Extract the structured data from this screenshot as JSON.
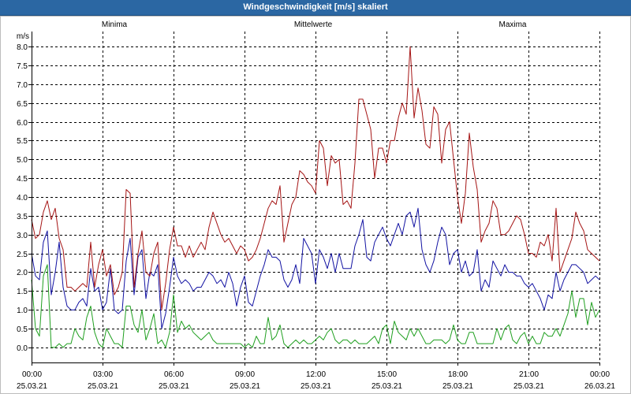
{
  "window": {
    "title_bar_color": "#2b67a3"
  },
  "chart_data": {
    "type": "line",
    "title": "Windgeschwindigkeit [m/s] skaliert",
    "xlabel": "",
    "ylabel": "m/s",
    "ylim": [
      -0.4,
      8.4
    ],
    "grid": true,
    "legend_position": "top",
    "yticks": [
      "0.0",
      "0.5",
      "1.0",
      "1.5",
      "2.0",
      "2.5",
      "3.0",
      "3.5",
      "4.0",
      "4.5",
      "5.0",
      "5.5",
      "6.0",
      "6.5",
      "7.0",
      "7.5",
      "8.0"
    ],
    "xticks": [
      {
        "time": "00:00",
        "date": "25.03.21"
      },
      {
        "time": "03:00",
        "date": "25.03.21"
      },
      {
        "time": "06:00",
        "date": "25.03.21"
      },
      {
        "time": "09:00",
        "date": "25.03.21"
      },
      {
        "time": "12:00",
        "date": "25.03.21"
      },
      {
        "time": "15:00",
        "date": "25.03.21"
      },
      {
        "time": "18:00",
        "date": "25.03.21"
      },
      {
        "time": "21:00",
        "date": "25.03.21"
      },
      {
        "time": "00:00",
        "date": "26.03.21"
      }
    ],
    "x": [
      "25.03.21 00:00",
      "25.03.21 00:10",
      "25.03.21 00:20",
      "25.03.21 00:30",
      "25.03.21 00:40",
      "25.03.21 00:50",
      "25.03.21 01:00",
      "25.03.21 01:10",
      "25.03.21 01:20",
      "25.03.21 01:30",
      "25.03.21 01:40",
      "25.03.21 01:50",
      "25.03.21 02:00",
      "25.03.21 02:10",
      "25.03.21 02:20",
      "25.03.21 02:30",
      "25.03.21 02:40",
      "25.03.21 02:50",
      "25.03.21 03:00",
      "25.03.21 03:10",
      "25.03.21 03:20",
      "25.03.21 03:30",
      "25.03.21 03:40",
      "25.03.21 03:50",
      "25.03.21 04:00",
      "25.03.21 04:10",
      "25.03.21 04:20",
      "25.03.21 04:30",
      "25.03.21 04:40",
      "25.03.21 04:50",
      "25.03.21 05:00",
      "25.03.21 05:10",
      "25.03.21 05:20",
      "25.03.21 05:30",
      "25.03.21 05:40",
      "25.03.21 05:50",
      "25.03.21 06:00",
      "25.03.21 06:10",
      "25.03.21 06:20",
      "25.03.21 06:30",
      "25.03.21 06:40",
      "25.03.21 06:50",
      "25.03.21 07:00",
      "25.03.21 07:10",
      "25.03.21 07:20",
      "25.03.21 07:30",
      "25.03.21 07:40",
      "25.03.21 07:50",
      "25.03.21 08:00",
      "25.03.21 08:10",
      "25.03.21 08:20",
      "25.03.21 08:30",
      "25.03.21 08:40",
      "25.03.21 08:50",
      "25.03.21 09:00",
      "25.03.21 09:10",
      "25.03.21 09:20",
      "25.03.21 09:30",
      "25.03.21 09:40",
      "25.03.21 09:50",
      "25.03.21 10:00",
      "25.03.21 10:10",
      "25.03.21 10:20",
      "25.03.21 10:30",
      "25.03.21 10:40",
      "25.03.21 10:50",
      "25.03.21 11:00",
      "25.03.21 11:10",
      "25.03.21 11:20",
      "25.03.21 11:30",
      "25.03.21 11:40",
      "25.03.21 11:50",
      "25.03.21 12:00",
      "25.03.21 12:10",
      "25.03.21 12:20",
      "25.03.21 12:30",
      "25.03.21 12:40",
      "25.03.21 12:50",
      "25.03.21 13:00",
      "25.03.21 13:10",
      "25.03.21 13:20",
      "25.03.21 13:30",
      "25.03.21 13:40",
      "25.03.21 13:50",
      "25.03.21 14:00",
      "25.03.21 14:10",
      "25.03.21 14:20",
      "25.03.21 14:30",
      "25.03.21 14:40",
      "25.03.21 14:50",
      "25.03.21 15:00",
      "25.03.21 15:10",
      "25.03.21 15:20",
      "25.03.21 15:30",
      "25.03.21 15:40",
      "25.03.21 15:50",
      "25.03.21 16:00",
      "25.03.21 16:10",
      "25.03.21 16:20",
      "25.03.21 16:30",
      "25.03.21 16:40",
      "25.03.21 16:50",
      "25.03.21 17:00",
      "25.03.21 17:10",
      "25.03.21 17:20",
      "25.03.21 17:30",
      "25.03.21 17:40",
      "25.03.21 17:50",
      "25.03.21 18:00",
      "25.03.21 18:10",
      "25.03.21 18:20",
      "25.03.21 18:30",
      "25.03.21 18:40",
      "25.03.21 18:50",
      "25.03.21 19:00",
      "25.03.21 19:10",
      "25.03.21 19:20",
      "25.03.21 19:30",
      "25.03.21 19:40",
      "25.03.21 19:50",
      "25.03.21 20:00",
      "25.03.21 20:10",
      "25.03.21 20:20",
      "25.03.21 20:30",
      "25.03.21 20:40",
      "25.03.21 20:50",
      "25.03.21 21:00",
      "25.03.21 21:10",
      "25.03.21 21:20",
      "25.03.21 21:30",
      "25.03.21 21:40",
      "25.03.21 21:50",
      "25.03.21 22:00",
      "25.03.21 22:10",
      "25.03.21 22:20",
      "25.03.21 22:30",
      "25.03.21 22:40",
      "25.03.21 22:50",
      "25.03.21 23:00",
      "25.03.21 23:10",
      "25.03.21 23:20",
      "25.03.21 23:30",
      "25.03.21 23:40",
      "25.03.21 23:50",
      "26.03.21 00:00"
    ],
    "series": [
      {
        "name": "Minima",
        "color": "#1f9f1f",
        "values": [
          1.8,
          0.5,
          0.3,
          1.9,
          2.2,
          0.0,
          0.0,
          0.1,
          0.0,
          0.1,
          0.1,
          0.5,
          0.3,
          0.2,
          0.8,
          1.1,
          0.4,
          0.1,
          0.0,
          0.5,
          0.3,
          0.1,
          0.1,
          0.0,
          1.1,
          1.1,
          0.6,
          0.4,
          1.0,
          0.2,
          0.5,
          0.9,
          0.1,
          0.2,
          0.0,
          0.4,
          1.4,
          0.4,
          0.7,
          0.5,
          0.6,
          0.4,
          0.3,
          0.2,
          0.3,
          0.4,
          0.2,
          0.1,
          0.1,
          0.1,
          0.1,
          0.1,
          0.1,
          0.1,
          0.0,
          0.1,
          0.0,
          0.3,
          0.1,
          0.1,
          0.8,
          0.2,
          0.3,
          0.6,
          0.1,
          0.0,
          0.1,
          0.2,
          0.1,
          0.2,
          0.1,
          0.1,
          0.2,
          0.3,
          0.2,
          0.4,
          0.5,
          0.2,
          0.1,
          0.2,
          0.2,
          0.1,
          0.2,
          0.1,
          0.1,
          0.1,
          0.2,
          0.3,
          0.1,
          0.5,
          0.6,
          0.1,
          0.7,
          0.4,
          0.3,
          0.2,
          0.5,
          0.3,
          0.5,
          0.3,
          0.1,
          0.1,
          0.2,
          0.2,
          0.2,
          0.1,
          0.2,
          0.6,
          0.2,
          0.1,
          0.1,
          0.4,
          0.4,
          0.1,
          0.1,
          0.1,
          0.1,
          0.1,
          0.5,
          0.2,
          0.5,
          0.6,
          0.2,
          0.1,
          0.3,
          0.4,
          0.1,
          0.3,
          0.1,
          0.1,
          0.4,
          0.3,
          0.3,
          0.5,
          0.3,
          0.6,
          0.9,
          1.5,
          0.8,
          1.3,
          1.3,
          0.6,
          1.2,
          0.8,
          1.0
        ]
      },
      {
        "name": "Mittelwerte",
        "color": "#1212a2",
        "values": [
          2.5,
          1.9,
          1.8,
          2.8,
          3.1,
          1.4,
          2.0,
          2.8,
          1.6,
          1.1,
          1.0,
          1.0,
          1.2,
          1.3,
          1.1,
          2.1,
          1.5,
          1.6,
          1.0,
          1.2,
          2.1,
          1.0,
          0.9,
          1.0,
          2.3,
          2.9,
          1.4,
          2.4,
          2.6,
          1.3,
          2.0,
          1.9,
          2.2,
          0.5,
          0.9,
          1.6,
          2.4,
          1.9,
          1.7,
          1.8,
          1.7,
          1.5,
          1.6,
          1.6,
          1.8,
          2.0,
          1.9,
          1.7,
          1.8,
          1.6,
          2.0,
          1.7,
          1.1,
          1.6,
          1.9,
          1.2,
          1.1,
          1.5,
          1.9,
          2.2,
          2.6,
          2.4,
          2.4,
          2.3,
          1.8,
          1.6,
          1.8,
          2.2,
          1.7,
          2.9,
          2.7,
          2.5,
          1.7,
          2.6,
          2.4,
          2.1,
          2.5,
          2.0,
          2.5,
          2.1,
          2.1,
          2.1,
          2.7,
          3.0,
          3.4,
          2.4,
          2.3,
          2.8,
          3.0,
          3.2,
          2.9,
          2.7,
          3.0,
          3.3,
          3.0,
          3.5,
          3.6,
          3.2,
          3.7,
          2.6,
          2.2,
          2.0,
          2.3,
          2.8,
          3.2,
          3.0,
          2.2,
          2.5,
          2.6,
          2.0,
          2.3,
          1.9,
          2.0,
          2.6,
          1.5,
          1.8,
          1.6,
          2.3,
          2.1,
          1.9,
          2.2,
          2.0,
          2.0,
          1.9,
          1.9,
          1.7,
          1.6,
          1.7,
          1.5,
          1.3,
          1.0,
          1.4,
          1.3,
          2.0,
          1.5,
          1.8,
          2.0,
          2.2,
          2.2,
          2.1,
          2.0,
          1.7,
          1.8,
          1.9,
          1.8
        ]
      },
      {
        "name": "Maxima",
        "color": "#a51414",
        "values": [
          3.4,
          2.9,
          3.0,
          3.6,
          3.9,
          3.4,
          3.7,
          2.9,
          2.6,
          1.6,
          1.6,
          1.5,
          1.6,
          1.7,
          1.6,
          2.8,
          1.6,
          2.2,
          2.6,
          1.9,
          2.2,
          1.4,
          1.6,
          2.0,
          4.2,
          4.1,
          1.6,
          2.5,
          3.1,
          2.0,
          1.9,
          2.5,
          2.8,
          1.0,
          1.7,
          2.6,
          3.2,
          2.7,
          2.7,
          2.4,
          2.7,
          2.4,
          2.6,
          2.8,
          2.6,
          3.2,
          3.6,
          3.3,
          3.0,
          2.8,
          2.9,
          2.7,
          2.5,
          2.7,
          2.6,
          2.3,
          2.4,
          2.6,
          2.9,
          3.3,
          3.7,
          3.9,
          3.8,
          4.3,
          2.8,
          3.3,
          3.8,
          4.0,
          4.7,
          4.6,
          4.4,
          4.3,
          4.1,
          5.5,
          5.3,
          4.3,
          5.1,
          4.9,
          5.0,
          3.8,
          3.9,
          3.7,
          4.9,
          6.6,
          6.6,
          6.2,
          5.8,
          4.5,
          5.3,
          5.3,
          4.9,
          5.5,
          5.5,
          6.1,
          6.5,
          6.2,
          8.0,
          6.1,
          6.9,
          6.3,
          5.4,
          5.3,
          6.4,
          6.2,
          4.9,
          5.8,
          6.0,
          5.0,
          4.0,
          3.3,
          4.1,
          5.7,
          4.8,
          4.2,
          2.8,
          3.1,
          3.3,
          3.9,
          3.7,
          3.0,
          3.0,
          3.1,
          3.3,
          3.5,
          3.4,
          3.0,
          2.5,
          2.5,
          2.4,
          2.8,
          2.7,
          3.0,
          2.3,
          3.7,
          2.0,
          2.3,
          2.6,
          2.9,
          3.6,
          3.3,
          3.1,
          2.6,
          2.5,
          2.4,
          2.3
        ]
      }
    ]
  }
}
